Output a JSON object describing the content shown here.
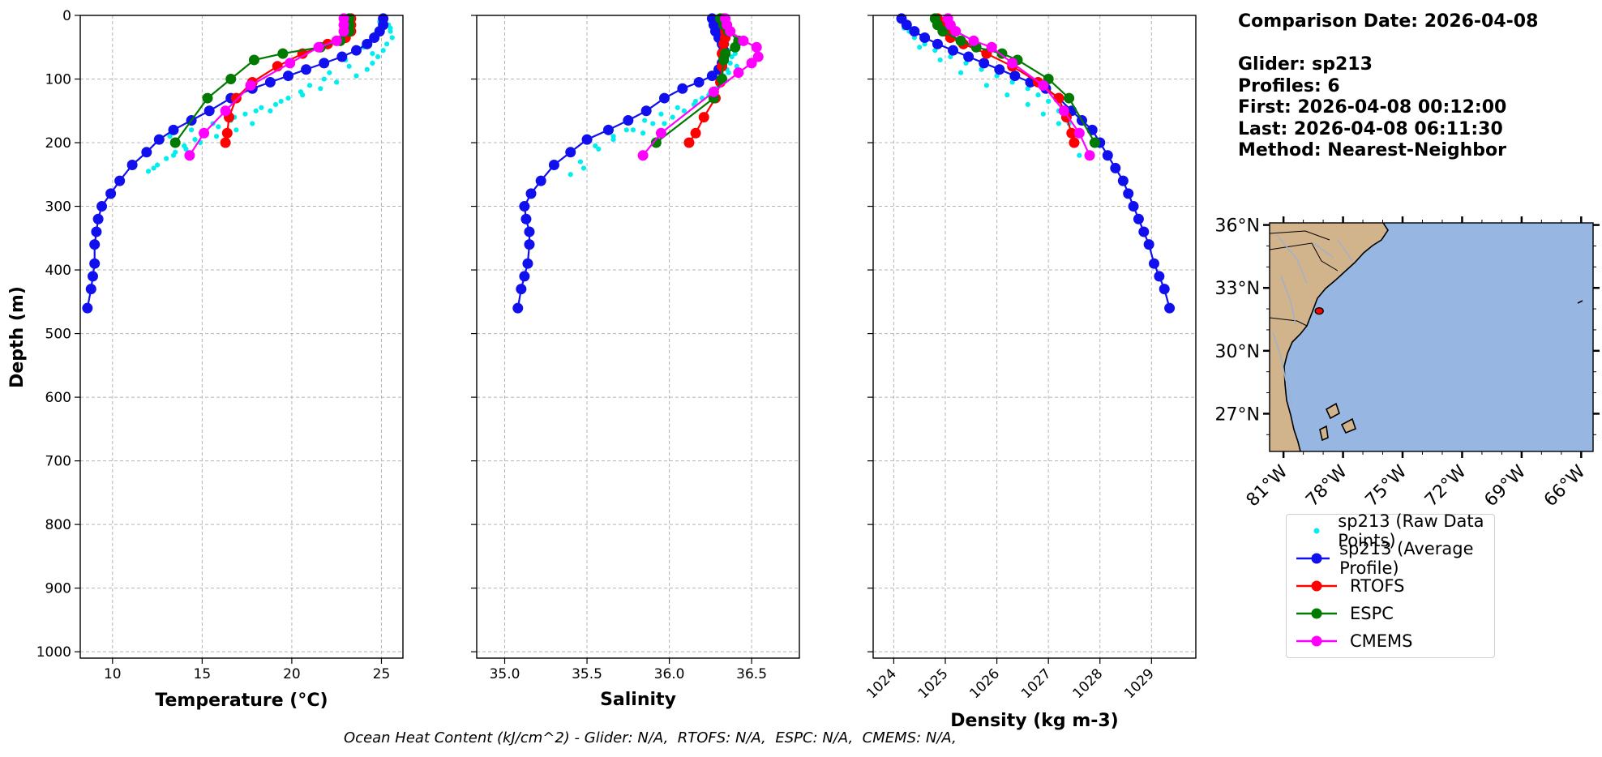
{
  "info": {
    "comparison_date": "Comparison Date: 2026-04-08",
    "glider": "Glider: sp213",
    "profiles": "Profiles: 6",
    "first": "First: 2026-04-08 00:12:00",
    "last": "Last: 2026-04-08 06:11:30",
    "method": "Method: Nearest-Neighbor"
  },
  "footer": "Ocean Heat Content (kJ/cm^2) - Glider: N/A,  RTOFS: N/A,  ESPC: N/A,  CMEMS: N/A,",
  "legend": [
    {
      "label": "sp213 (Raw Data Points)",
      "color": "#00eeee",
      "style": "dot"
    },
    {
      "label": "sp213 (Average Profile)",
      "color": "#1010ee",
      "style": "line-marker"
    },
    {
      "label": "RTOFS",
      "color": "#ff0000",
      "style": "line-marker"
    },
    {
      "label": "ESPC",
      "color": "#007a00",
      "style": "line-marker"
    },
    {
      "label": "CMEMS",
      "color": "#ff00ff",
      "style": "line-marker"
    }
  ],
  "chart_data": [
    {
      "type": "line",
      "title": "",
      "xlabel": "Temperature (°C)",
      "ylabel": "Depth (m)",
      "xlim": [
        8.2,
        26.2
      ],
      "ylim": [
        1010,
        0
      ],
      "xticks": [
        10,
        15,
        20,
        25
      ],
      "yticks": [
        0,
        100,
        200,
        300,
        400,
        500,
        600,
        700,
        800,
        900,
        1000
      ],
      "grid": true,
      "series": [
        {
          "name": "sp213 (Raw Data Points)",
          "color": "#00eeee",
          "style": "dot",
          "x": [
            25.2,
            25.4,
            25.5,
            25.6,
            25.3,
            25.1,
            24.8,
            24.5,
            24.2,
            23.6,
            22.5,
            21.6,
            20.6,
            19.4,
            18.3,
            17.4,
            16.6,
            15.9,
            15.2,
            14.6,
            14.0,
            13.5,
            13.0,
            12.5,
            12.0,
            24.9,
            24.6,
            24.0,
            23.0,
            22.1,
            21.0,
            19.8,
            18.8,
            17.8,
            16.9,
            15.8,
            14.9,
            14.1,
            13.4,
            25.5,
            24.5,
            23.2,
            21.8,
            20.5,
            19.1,
            18.0,
            16.8,
            15.6,
            14.4,
            13.2,
            12.3
          ],
          "y": [
            5,
            15,
            25,
            35,
            45,
            55,
            65,
            75,
            85,
            95,
            105,
            115,
            125,
            135,
            145,
            155,
            165,
            175,
            185,
            195,
            205,
            215,
            225,
            235,
            245,
            10,
            30,
            50,
            70,
            90,
            110,
            130,
            150,
            170,
            180,
            190,
            200,
            210,
            220,
            20,
            60,
            80,
            100,
            120,
            140,
            150,
            160,
            170,
            180,
            190,
            240
          ]
        },
        {
          "name": "sp213 (Average Profile)",
          "color": "#1010ee",
          "style": "line-marker",
          "x": [
            25.1,
            25.1,
            24.9,
            24.6,
            24.2,
            23.6,
            22.8,
            21.8,
            20.8,
            19.8,
            18.8,
            17.8,
            16.6,
            15.4,
            14.4,
            13.4,
            12.6,
            11.9,
            11.1,
            10.4,
            9.9,
            9.4,
            9.2,
            9.1,
            9.0,
            9.0,
            8.9,
            8.8,
            8.6
          ],
          "y": [
            5,
            15,
            25,
            35,
            45,
            55,
            65,
            75,
            85,
            95,
            105,
            115,
            130,
            150,
            165,
            180,
            195,
            215,
            235,
            260,
            280,
            300,
            320,
            340,
            360,
            390,
            410,
            430,
            460
          ]
        },
        {
          "name": "RTOFS",
          "color": "#ff0000",
          "style": "line-marker",
          "x": [
            23.3,
            23.3,
            23.3,
            23.0,
            22.0,
            20.6,
            19.2,
            17.8,
            16.9,
            16.5,
            16.4,
            16.3
          ],
          "y": [
            5,
            15,
            25,
            35,
            45,
            60,
            80,
            105,
            130,
            160,
            185,
            200
          ]
        },
        {
          "name": "ESPC",
          "color": "#007a00",
          "style": "line-marker",
          "x": [
            23.2,
            23.2,
            23.2,
            22.7,
            21.6,
            19.5,
            17.9,
            16.6,
            15.3,
            13.5
          ],
          "y": [
            5,
            15,
            25,
            40,
            50,
            60,
            70,
            100,
            130,
            200
          ]
        },
        {
          "name": "CMEMS",
          "color": "#ff00ff",
          "style": "line-marker",
          "x": [
            22.9,
            22.9,
            22.9,
            22.5,
            21.5,
            19.9,
            17.7,
            16.3,
            15.1,
            14.3
          ],
          "y": [
            5,
            15,
            25,
            40,
            50,
            75,
            110,
            150,
            185,
            220
          ]
        }
      ]
    },
    {
      "type": "line",
      "title": "",
      "xlabel": "Salinity",
      "ylabel": "",
      "xlim": [
        34.83,
        36.79
      ],
      "ylim": [
        1010,
        0
      ],
      "xticks": [
        35.0,
        35.5,
        36.0,
        36.5
      ],
      "yticks": [
        0,
        100,
        200,
        300,
        400,
        500,
        600,
        700,
        800,
        900,
        1000
      ],
      "grid": true,
      "series": [
        {
          "name": "sp213 (Raw Data Points)",
          "color": "#00eeee",
          "style": "dot",
          "x": [
            36.28,
            36.3,
            36.32,
            36.33,
            36.35,
            36.36,
            36.38,
            36.37,
            36.35,
            36.33,
            36.31,
            36.28,
            36.24,
            36.16,
            36.05,
            35.95,
            35.85,
            35.74,
            35.66,
            35.57,
            35.46,
            35.4,
            36.26,
            36.29,
            36.4,
            36.36,
            36.25,
            36.15,
            36.02,
            35.9,
            35.78,
            35.66,
            35.55,
            35.48,
            36.41,
            36.3,
            36.2,
            36.09,
            35.97,
            35.84
          ],
          "y": [
            5,
            15,
            25,
            35,
            45,
            55,
            65,
            75,
            85,
            95,
            105,
            115,
            125,
            135,
            145,
            155,
            165,
            180,
            195,
            210,
            230,
            250,
            10,
            30,
            60,
            90,
            120,
            140,
            160,
            170,
            180,
            190,
            205,
            240,
            80,
            110,
            130,
            150,
            170,
            185
          ]
        },
        {
          "name": "sp213 (Average Profile)",
          "color": "#1010ee",
          "style": "line-marker",
          "x": [
            36.26,
            36.27,
            36.28,
            36.3,
            36.32,
            36.33,
            36.33,
            36.32,
            36.3,
            36.26,
            36.18,
            36.08,
            35.97,
            35.86,
            35.75,
            35.63,
            35.5,
            35.4,
            35.3,
            35.22,
            35.16,
            35.12,
            35.13,
            35.15,
            35.15,
            35.14,
            35.12,
            35.1,
            35.08
          ],
          "y": [
            5,
            15,
            25,
            35,
            45,
            55,
            65,
            75,
            85,
            95,
            105,
            115,
            130,
            150,
            165,
            180,
            195,
            215,
            235,
            260,
            280,
            300,
            320,
            340,
            360,
            390,
            410,
            430,
            460
          ]
        },
        {
          "name": "RTOFS",
          "color": "#ff0000",
          "style": "line-marker",
          "x": [
            36.33,
            36.33,
            36.34,
            36.34,
            36.33,
            36.32,
            36.32,
            36.31,
            36.28,
            36.21,
            36.16,
            36.12
          ],
          "y": [
            5,
            15,
            25,
            35,
            45,
            60,
            80,
            105,
            130,
            160,
            185,
            200
          ]
        },
        {
          "name": "ESPC",
          "color": "#007a00",
          "style": "line-marker",
          "x": [
            36.31,
            36.33,
            36.36,
            36.42,
            36.4,
            36.34,
            36.33,
            36.32,
            36.27,
            35.92
          ],
          "y": [
            5,
            15,
            25,
            40,
            50,
            60,
            70,
            100,
            130,
            200
          ]
        },
        {
          "name": "CMEMS",
          "color": "#ff00ff",
          "style": "line-marker",
          "x": [
            36.34,
            36.35,
            36.37,
            36.45,
            36.53,
            36.54,
            36.5,
            36.42,
            36.27,
            35.95,
            35.84
          ],
          "y": [
            5,
            15,
            25,
            40,
            50,
            65,
            75,
            90,
            120,
            185,
            220
          ]
        }
      ]
    },
    {
      "type": "line",
      "title": "",
      "xlabel": "Density (kg m-3)",
      "ylabel": "",
      "xlim": [
        1023.6,
        1029.86
      ],
      "ylim": [
        1010,
        0
      ],
      "xticks": [
        1024,
        1025,
        1026,
        1027,
        1028,
        1029
      ],
      "yticks": [
        0,
        100,
        200,
        300,
        400,
        500,
        600,
        700,
        800,
        900,
        1000
      ],
      "grid": true,
      "series": [
        {
          "name": "sp213 (Raw Data Points)",
          "color": "#00eeee",
          "style": "dot",
          "x": [
            1024.1,
            1024.2,
            1024.3,
            1024.4,
            1024.6,
            1024.8,
            1025.1,
            1025.4,
            1025.7,
            1026.0,
            1026.3,
            1026.6,
            1026.8,
            1027.0,
            1027.2,
            1027.4,
            1024.2,
            1024.5,
            1024.9,
            1025.3,
            1025.8,
            1026.2,
            1026.6,
            1026.9,
            1027.2,
            1027.5,
            1027.6
          ],
          "y": [
            5,
            15,
            25,
            35,
            45,
            55,
            65,
            75,
            85,
            95,
            105,
            115,
            125,
            135,
            150,
            170,
            20,
            50,
            70,
            90,
            110,
            125,
            140,
            155,
            170,
            190,
            220
          ]
        },
        {
          "name": "sp213 (Average Profile)",
          "color": "#1010ee",
          "style": "line-marker",
          "x": [
            1024.15,
            1024.25,
            1024.4,
            1024.6,
            1024.85,
            1025.15,
            1025.45,
            1025.75,
            1026.05,
            1026.35,
            1026.65,
            1026.95,
            1027.2,
            1027.45,
            1027.65,
            1027.85,
            1028.0,
            1028.15,
            1028.3,
            1028.45,
            1028.55,
            1028.65,
            1028.75,
            1028.85,
            1028.95,
            1029.05,
            1029.15,
            1029.25,
            1029.35
          ],
          "y": [
            5,
            15,
            25,
            35,
            45,
            55,
            65,
            75,
            85,
            95,
            105,
            115,
            130,
            150,
            165,
            180,
            200,
            220,
            240,
            260,
            280,
            300,
            320,
            340,
            360,
            390,
            410,
            430,
            460
          ]
        },
        {
          "name": "RTOFS",
          "color": "#ff0000",
          "style": "line-marker",
          "x": [
            1024.85,
            1024.9,
            1025.0,
            1025.1,
            1025.35,
            1025.8,
            1026.3,
            1026.8,
            1027.2,
            1027.35,
            1027.45,
            1027.5
          ],
          "y": [
            5,
            15,
            25,
            35,
            45,
            60,
            80,
            105,
            130,
            160,
            185,
            200
          ]
        },
        {
          "name": "ESPC",
          "color": "#007a00",
          "style": "line-marker",
          "x": [
            1024.8,
            1024.85,
            1024.95,
            1025.3,
            1025.6,
            1026.1,
            1026.4,
            1027.0,
            1027.4,
            1027.9
          ],
          "y": [
            5,
            15,
            25,
            40,
            50,
            60,
            70,
            100,
            130,
            200
          ]
        },
        {
          "name": "CMEMS",
          "color": "#ff00ff",
          "style": "line-marker",
          "x": [
            1025.05,
            1025.1,
            1025.2,
            1025.55,
            1025.9,
            1026.3,
            1026.9,
            1027.3,
            1027.6,
            1027.8
          ],
          "y": [
            5,
            15,
            25,
            40,
            50,
            75,
            110,
            150,
            185,
            220
          ]
        }
      ]
    },
    {
      "type": "map",
      "lon_ticks": [
        "81°W",
        "78°W",
        "75°W",
        "72°W",
        "69°W",
        "66°W"
      ],
      "lon_tick_values": [
        -81,
        -78,
        -75,
        -72,
        -69,
        -66
      ],
      "lat_ticks": [
        "36°N",
        "33°N",
        "30°N",
        "27°N"
      ],
      "lat_tick_values": [
        36,
        33,
        30,
        27
      ],
      "lon_range": [
        -81.7,
        -65.4
      ],
      "lat_range": [
        25.2,
        36.1
      ],
      "land_color": "#d2b48c",
      "ocean_color": "#97b6e1",
      "glider_position": {
        "lon": -79.2,
        "lat": 31.9
      }
    }
  ]
}
